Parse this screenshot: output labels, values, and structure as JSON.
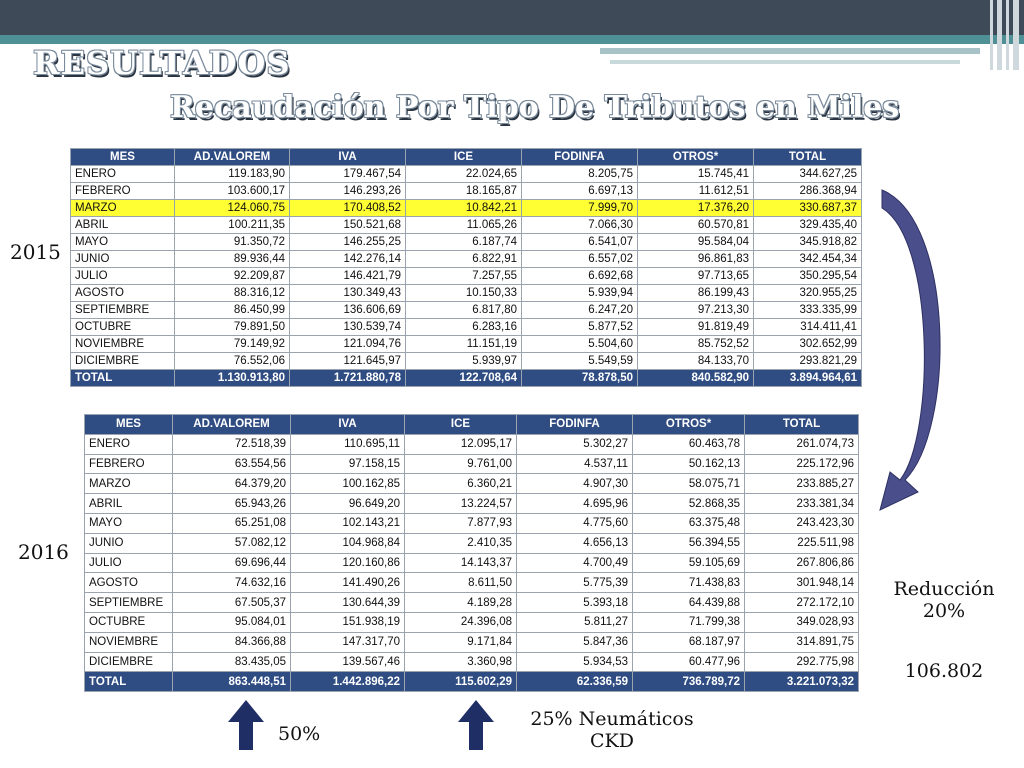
{
  "slide": {
    "title": "RESULTADOS",
    "subtitle": "Recaudación Por Tipo De Tributos en Miles",
    "labels": {
      "year_2015": "2015",
      "year_2016": "2016",
      "reduction_line1": "Reducción",
      "reduction_line2": "20%",
      "reduction_value": "106.802",
      "pct_advalorem": "50%",
      "neumaticos_line1": "25% Neumáticos",
      "neumaticos_line2": "CKD"
    },
    "colors": {
      "header_bg": "#2f4d83",
      "highlight": "#ffff33",
      "arrow": "#4a4e8a"
    }
  },
  "headers": [
    "MES",
    "AD.VALOREM",
    "IVA",
    "ICE",
    "FODINFA",
    "OTROS*",
    "TOTAL"
  ],
  "table_2015": {
    "rows": [
      [
        "ENERO",
        "119.183,90",
        "179.467,54",
        "22.024,65",
        "8.205,75",
        "15.745,41",
        "344.627,25"
      ],
      [
        "FEBRERO",
        "103.600,17",
        "146.293,26",
        "18.165,87",
        "6.697,13",
        "11.612,51",
        "286.368,94"
      ],
      [
        "MARZO",
        "124.060,75",
        "170.408,52",
        "10.842,21",
        "7.999,70",
        "17.376,20",
        "330.687,37"
      ],
      [
        "ABRIL",
        "100.211,35",
        "150.521,68",
        "11.065,26",
        "7.066,30",
        "60.570,81",
        "329.435,40"
      ],
      [
        "MAYO",
        "91.350,72",
        "146.255,25",
        "6.187,74",
        "6.541,07",
        "95.584,04",
        "345.918,82"
      ],
      [
        "JUNIO",
        "89.936,44",
        "142.276,14",
        "6.822,91",
        "6.557,02",
        "96.861,83",
        "342.454,34"
      ],
      [
        "JULIO",
        "92.209,87",
        "146.421,79",
        "7.257,55",
        "6.692,68",
        "97.713,65",
        "350.295,54"
      ],
      [
        "AGOSTO",
        "88.316,12",
        "130.349,43",
        "10.150,33",
        "5.939,94",
        "86.199,43",
        "320.955,25"
      ],
      [
        "SEPTIEMBRE",
        "86.450,99",
        "136.606,69",
        "6.817,80",
        "6.247,20",
        "97.213,30",
        "333.335,99"
      ],
      [
        "OCTUBRE",
        "79.891,50",
        "130.539,74",
        "6.283,16",
        "5.877,52",
        "91.819,49",
        "314.411,41"
      ],
      [
        "NOVIEMBRE",
        "79.149,92",
        "121.094,76",
        "11.151,19",
        "5.504,60",
        "85.752,52",
        "302.652,99"
      ],
      [
        "DICIEMBRE",
        "76.552,06",
        "121.645,97",
        "5.939,97",
        "5.549,59",
        "84.133,70",
        "293.821,29"
      ]
    ],
    "total": [
      "TOTAL",
      "1.130.913,80",
      "1.721.880,78",
      "122.708,64",
      "78.878,50",
      "840.582,90",
      "3.894.964,61"
    ]
  },
  "table_2016": {
    "rows": [
      [
        "ENERO",
        "72.518,39",
        "110.695,11",
        "12.095,17",
        "5.302,27",
        "60.463,78",
        "261.074,73"
      ],
      [
        "FEBRERO",
        "63.554,56",
        "97.158,15",
        "9.761,00",
        "4.537,11",
        "50.162,13",
        "225.172,96"
      ],
      [
        "MARZO",
        "64.379,20",
        "100.162,85",
        "6.360,21",
        "4.907,30",
        "58.075,71",
        "233.885,27"
      ],
      [
        "ABRIL",
        "65.943,26",
        "96.649,20",
        "13.224,57",
        "4.695,96",
        "52.868,35",
        "233.381,34"
      ],
      [
        "MAYO",
        "65.251,08",
        "102.143,21",
        "7.877,93",
        "4.775,60",
        "63.375,48",
        "243.423,30"
      ],
      [
        "JUNIO",
        "57.082,12",
        "104.968,84",
        "2.410,35",
        "4.656,13",
        "56.394,55",
        "225.511,98"
      ],
      [
        "JULIO",
        "69.696,44",
        "120.160,86",
        "14.143,37",
        "4.700,49",
        "59.105,69",
        "267.806,86"
      ],
      [
        "AGOSTO",
        "74.632,16",
        "141.490,26",
        "8.611,50",
        "5.775,39",
        "71.438,83",
        "301.948,14"
      ],
      [
        "SEPTIEMBRE",
        "67.505,37",
        "130.644,39",
        "4.189,28",
        "5.393,18",
        "64.439,88",
        "272.172,10"
      ],
      [
        "OCTUBRE",
        "95.084,01",
        "151.938,19",
        "24.396,08",
        "5.811,27",
        "71.799,38",
        "349.028,93"
      ],
      [
        "NOVIEMBRE",
        "84.366,88",
        "147.317,70",
        "9.171,84",
        "5.847,36",
        "68.187,97",
        "314.891,75"
      ],
      [
        "DICIEMBRE",
        "83.435,05",
        "139.567,46",
        "3.360,98",
        "5.934,53",
        "60.477,96",
        "292.775,98"
      ]
    ],
    "total": [
      "TOTAL",
      "863.448,51",
      "1.442.896,22",
      "115.602,29",
      "62.336,59",
      "736.789,72",
      "3.221.073,32"
    ]
  }
}
